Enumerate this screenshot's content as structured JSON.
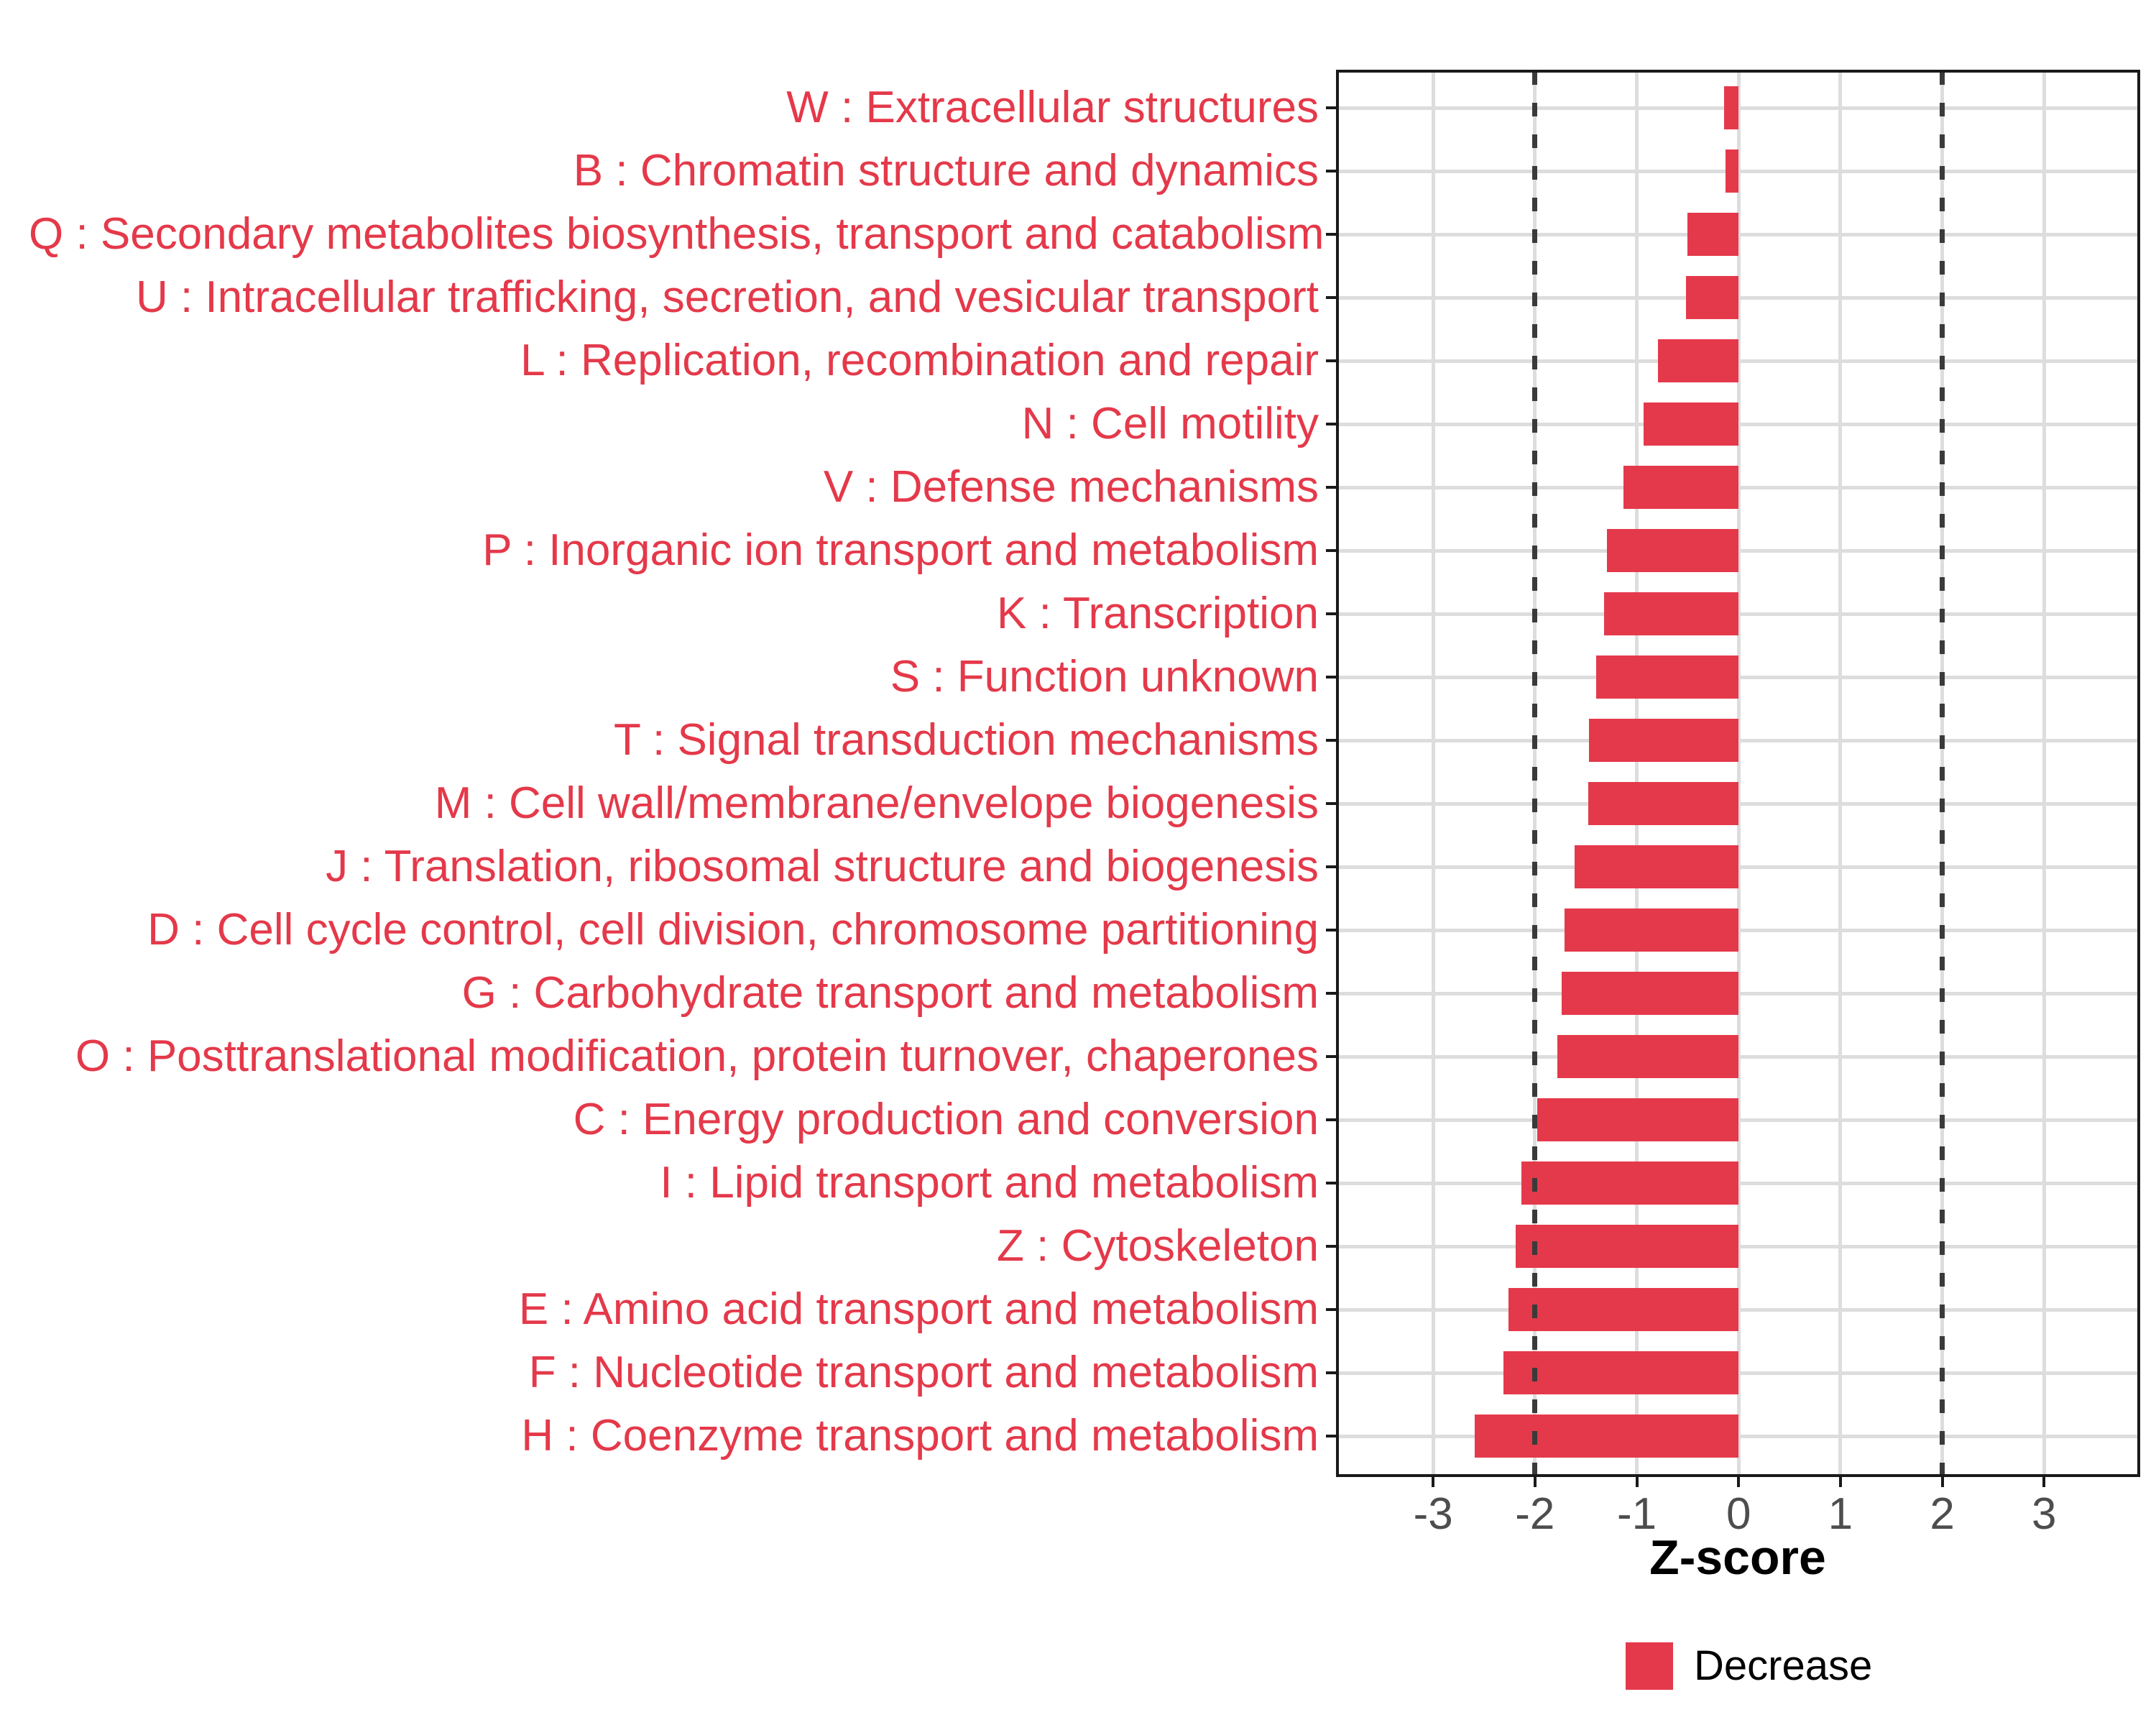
{
  "chart_data": {
    "type": "bar",
    "orientation": "horizontal",
    "title": "",
    "xlabel": "Z-score",
    "ylabel": "",
    "categories": [
      "W : Extracellular structures",
      "B : Chromatin structure and dynamics",
      "Q : Secondary metabolites biosynthesis, transport and catabolism",
      "U : Intracellular trafficking, secretion, and vesicular transport",
      "L : Replication, recombination and repair",
      "N : Cell motility",
      "V : Defense mechanisms",
      "P : Inorganic ion transport and metabolism",
      "K : Transcription",
      "S : Function unknown",
      "T : Signal transduction mechanisms",
      "M : Cell wall/membrane/envelope biogenesis",
      "J : Translation, ribosomal structure and biogenesis",
      "D : Cell cycle control, cell division, chromosome partitioning",
      "G : Carbohydrate transport and metabolism",
      "O : Posttranslational modification, protein turnover, chaperones",
      "C : Energy production and conversion",
      "I : Lipid transport and metabolism",
      "Z : Cytoskeleton",
      "E : Amino acid transport and metabolism",
      "F : Nucleotide transport and metabolism",
      "H : Coenzyme transport and metabolism"
    ],
    "series": [
      {
        "name": "Decrease",
        "values": [
          -0.14,
          -0.13,
          -0.5,
          -0.52,
          -0.79,
          -0.93,
          -1.13,
          -1.29,
          -1.32,
          -1.4,
          -1.47,
          -1.48,
          -1.61,
          -1.71,
          -1.74,
          -1.78,
          -1.98,
          -2.13,
          -2.19,
          -2.26,
          -2.31,
          -2.59
        ]
      }
    ],
    "xlim": [
      -3.94,
      3.93
    ],
    "x_ticks": [
      "-3",
      "-2",
      "-1",
      "0",
      "1",
      "2",
      "3"
    ],
    "x_tick_values": [
      -3,
      -2,
      -1,
      0,
      1,
      2,
      3
    ],
    "reference_lines": [
      -2,
      2
    ],
    "grid": "major only, horizontal at each category, vertical at each x tick",
    "legend": {
      "position": "bottom-center",
      "entries": [
        {
          "label": "Decrease",
          "color": "#e4394a"
        }
      ]
    },
    "colors": {
      "bar": "#e4394a",
      "category_label": "#e4394a",
      "axis_tick_label": "#4d4d4d",
      "grid": "#dddddd",
      "reference_line": "#3a3a3a",
      "panel_border": "#1a1a1a",
      "axis_title": "#000000"
    }
  }
}
